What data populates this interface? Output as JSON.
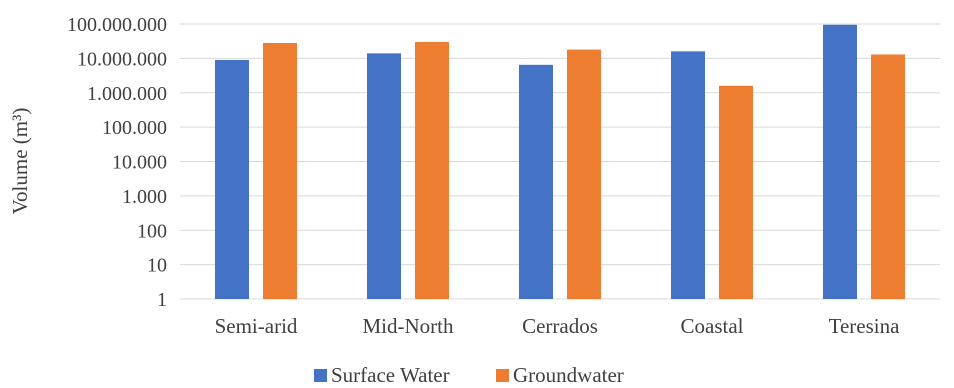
{
  "chart_data": {
    "type": "bar",
    "yscale": "log",
    "ylim": [
      1,
      100000000
    ],
    "ylabel": "Volume (m³)",
    "xlabel": "",
    "title": "",
    "grid": true,
    "legend_position": "bottom",
    "y_ticks": [
      {
        "value": 1,
        "label": "1"
      },
      {
        "value": 10,
        "label": "10"
      },
      {
        "value": 100,
        "label": "100"
      },
      {
        "value": 1000,
        "label": "1.000"
      },
      {
        "value": 10000,
        "label": "10.000"
      },
      {
        "value": 100000,
        "label": "100.000"
      },
      {
        "value": 1000000,
        "label": "1.000.000"
      },
      {
        "value": 10000000,
        "label": "10.000.000"
      },
      {
        "value": 100000000,
        "label": "100.000.000"
      }
    ],
    "categories": [
      "Semi-arid",
      "Mid-North",
      "Cerrados",
      "Coastal",
      "Teresina"
    ],
    "series": [
      {
        "name": "Surface Water",
        "color": "#4472c4",
        "values": [
          9000000,
          14000000,
          6500000,
          16000000,
          95000000
        ]
      },
      {
        "name": "Groundwater",
        "color": "#ed7d31",
        "values": [
          28000000,
          30000000,
          18000000,
          1600000,
          13000000
        ]
      }
    ]
  }
}
